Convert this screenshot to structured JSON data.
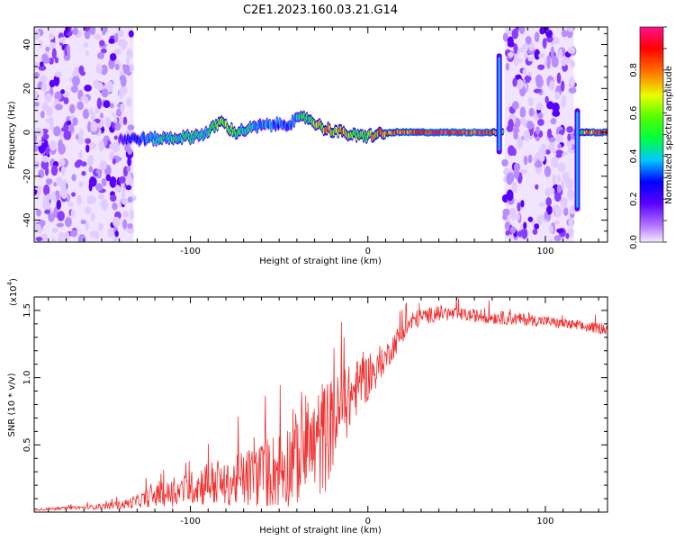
{
  "title": "C2E1.2023.160.03.21.G14",
  "chart_data": [
    {
      "type": "heatmap",
      "xlabel": "Height of straight line (km)",
      "ylabel": "Frequency (Hz)",
      "xlim": [
        -188,
        135
      ],
      "ylim": [
        -50,
        48
      ],
      "x_ticks": [
        -100,
        0,
        100
      ],
      "x_tick_labels": [
        "-100",
        "0",
        "100"
      ],
      "y_ticks": [
        -40,
        -20,
        0,
        20,
        40
      ],
      "y_tick_labels": [
        "-40",
        "-20",
        "0",
        "20",
        "40"
      ],
      "noise_regions": [
        {
          "x_range": [
            -188,
            -132
          ],
          "f_range": [
            -50,
            48
          ]
        },
        {
          "x_range": [
            77,
            116
          ],
          "f_range": [
            -50,
            48
          ]
        }
      ],
      "signal_track": [
        {
          "x": -140,
          "f": -3,
          "amp": 0.2
        },
        {
          "x": -120,
          "f": -3,
          "amp": 0.45
        },
        {
          "x": -100,
          "f": -2,
          "amp": 0.5
        },
        {
          "x": -90,
          "f": 0,
          "amp": 0.45
        },
        {
          "x": -83,
          "f": 5,
          "amp": 0.75
        },
        {
          "x": -75,
          "f": 0,
          "amp": 0.55
        },
        {
          "x": -60,
          "f": 3,
          "amp": 0.4
        },
        {
          "x": -45,
          "f": 4,
          "amp": 0.35
        },
        {
          "x": -35,
          "f": 7,
          "amp": 0.55
        },
        {
          "x": -25,
          "f": 2,
          "amp": 0.75
        },
        {
          "x": -15,
          "f": 0,
          "amp": 0.8
        },
        {
          "x": -5,
          "f": -2,
          "amp": 0.6
        },
        {
          "x": 5,
          "f": -1,
          "amp": 0.8
        },
        {
          "x": 15,
          "f": 0,
          "amp": 0.9
        },
        {
          "x": 40,
          "f": 0,
          "amp": 0.95
        },
        {
          "x": 70,
          "f": 0,
          "amp": 0.95
        },
        {
          "x": 74,
          "f": 0,
          "amp": 0.5
        },
        {
          "x": 118,
          "f": 0,
          "amp": 0.45
        },
        {
          "x": 125,
          "f": 0,
          "amp": 0.9
        },
        {
          "x": 135,
          "f": 0,
          "amp": 0.95
        }
      ],
      "spikes": [
        {
          "x": 74,
          "f_range": [
            -10,
            36
          ]
        },
        {
          "x": 118,
          "f_range": [
            -36,
            11
          ]
        }
      ],
      "colorbar": {
        "label": "Normalized spectral amplitude",
        "range": [
          0,
          1
        ],
        "ticks": [
          0.0,
          0.2,
          0.4,
          0.6,
          0.8
        ],
        "tick_labels": [
          "0.0",
          "0.2",
          "0.4",
          "0.6",
          "0.8"
        ]
      }
    },
    {
      "type": "line",
      "xlabel": "Height of straight line (km)",
      "ylabel": "SNR (10 * v/v)",
      "y_scale_label": "(x10",
      "y_scale_exp": "4",
      "y_scale_close": ")",
      "xlim": [
        -188,
        135
      ],
      "ylim": [
        0,
        1.6
      ],
      "x_ticks": [
        -100,
        0,
        100
      ],
      "x_tick_labels": [
        "-100",
        "0",
        "100"
      ],
      "y_ticks": [
        0.5,
        1.0,
        1.5
      ],
      "y_tick_labels": [
        "0.5",
        "1.0",
        "1.5"
      ],
      "series": [
        {
          "color": "#f03030",
          "x": [
            -188,
            -170,
            -150,
            -140,
            -130,
            -120,
            -110,
            -100,
            -90,
            -80,
            -70,
            -60,
            -50,
            -40,
            -30,
            -25,
            -20,
            -15,
            -10,
            -5,
            0,
            5,
            10,
            15,
            20,
            25,
            30,
            40,
            50,
            60,
            80,
            100,
            120,
            135
          ],
          "y": [
            0.02,
            0.03,
            0.04,
            0.05,
            0.08,
            0.12,
            0.14,
            0.18,
            0.22,
            0.2,
            0.25,
            0.28,
            0.32,
            0.4,
            0.48,
            0.55,
            0.65,
            0.75,
            0.85,
            0.95,
            1.0,
            1.05,
            1.15,
            1.25,
            1.35,
            1.42,
            1.45,
            1.48,
            1.47,
            1.46,
            1.44,
            1.42,
            1.38,
            1.36
          ],
          "noise": [
            0.01,
            0.01,
            0.02,
            0.03,
            0.05,
            0.08,
            0.1,
            0.12,
            0.18,
            0.15,
            0.22,
            0.25,
            0.3,
            0.35,
            0.4,
            0.45,
            0.35,
            0.3,
            0.25,
            0.2,
            0.18,
            0.12,
            0.1,
            0.1,
            0.08,
            0.08,
            0.06,
            0.06,
            0.05,
            0.05,
            0.05,
            0.04,
            0.04,
            0.04
          ]
        }
      ]
    }
  ]
}
